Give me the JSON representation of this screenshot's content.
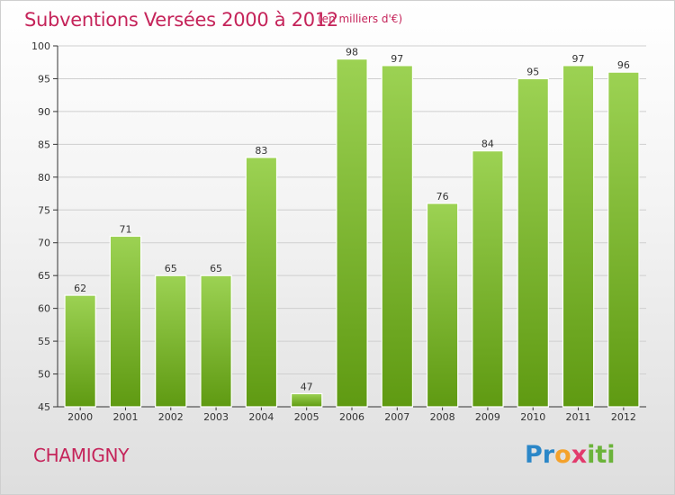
{
  "header": {
    "title": "Subventions Versées 2000 à 2012",
    "subtitle": "(en milliers d'€)"
  },
  "footer": {
    "commune": "CHAMIGNY",
    "logo_letters": [
      "P",
      "r",
      "o",
      "x",
      "i",
      "t",
      "i"
    ]
  },
  "colors": {
    "title": "#c5245a",
    "bar_top": "#9cd253",
    "bar_bottom": "#5f9a12",
    "grid": "#cfcfcf",
    "axis": "#333333"
  },
  "chart_data": {
    "type": "bar",
    "title": "Subventions Versées 2000 à 2012",
    "subtitle": "(en milliers d'€)",
    "xlabel": "",
    "ylabel": "",
    "categories": [
      "2000",
      "2001",
      "2002",
      "2003",
      "2004",
      "2005",
      "2006",
      "2007",
      "2008",
      "2009",
      "2010",
      "2011",
      "2012"
    ],
    "values": [
      62,
      71,
      65,
      65,
      83,
      47,
      98,
      97,
      76,
      84,
      95,
      97,
      96
    ],
    "ylim": [
      45,
      100
    ],
    "yticks": [
      45,
      50,
      55,
      60,
      65,
      70,
      75,
      80,
      85,
      90,
      95,
      100
    ],
    "grid": "horizontal",
    "data_labels": true,
    "legend": "none"
  }
}
